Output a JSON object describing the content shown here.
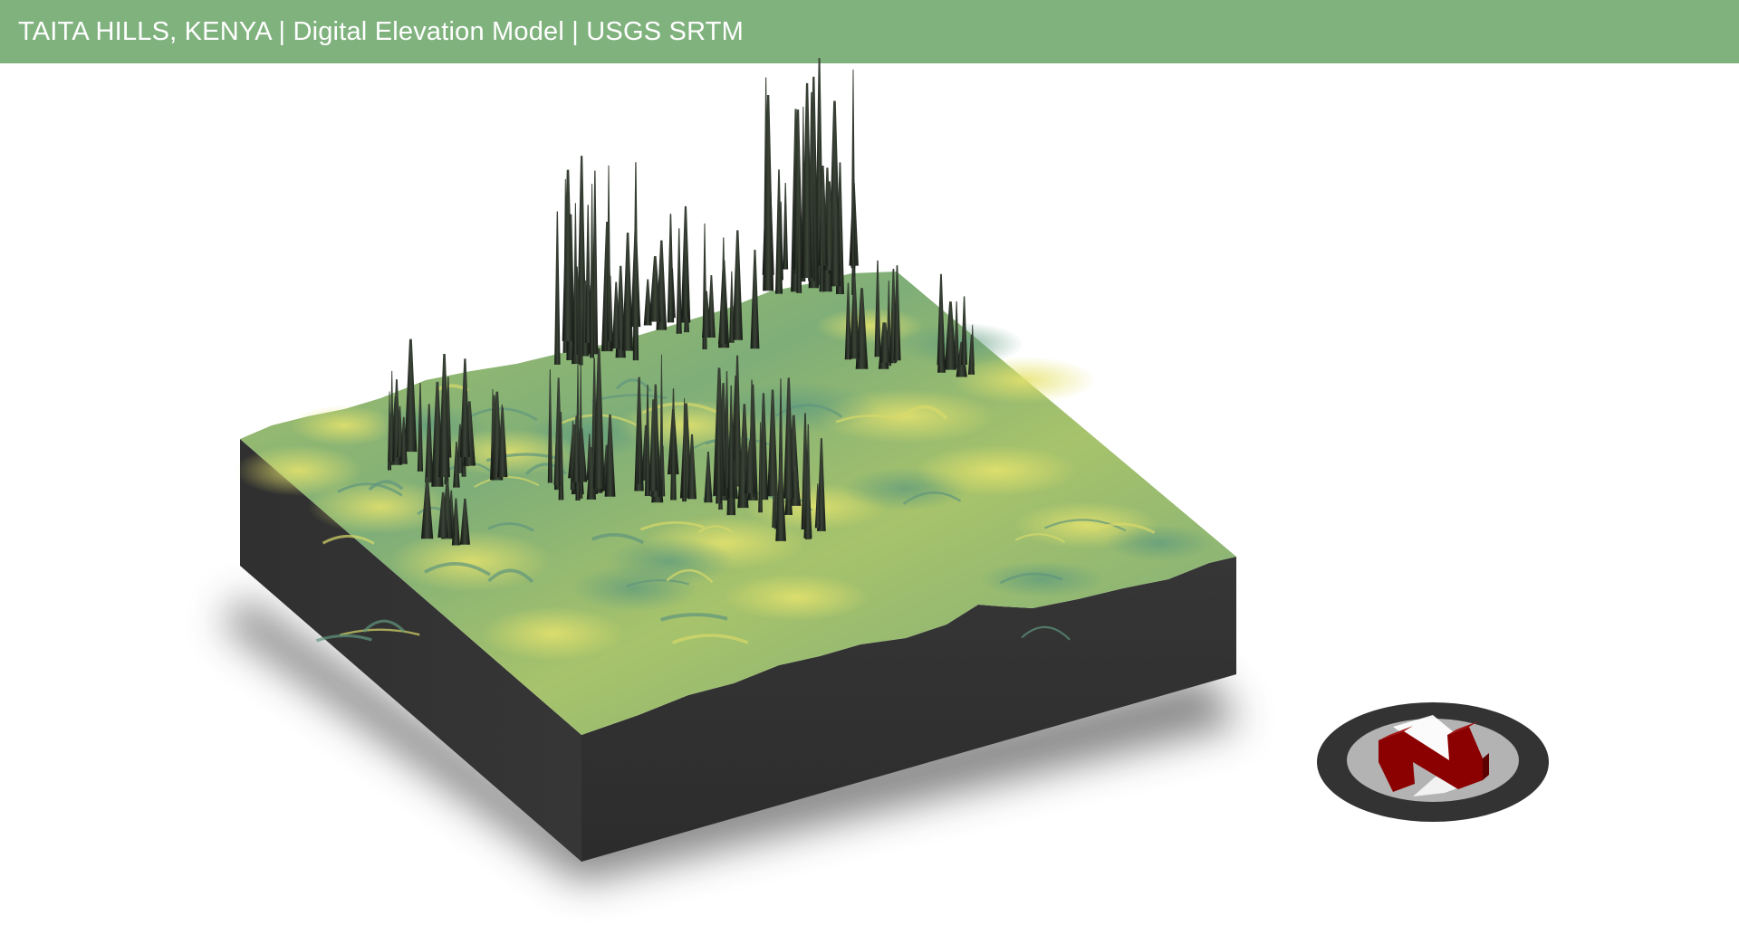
{
  "header": {
    "title": "TAITA HILLS, KENYA | Digital Elevation Model | USGS SRTM"
  },
  "colors": {
    "header_bg": "#80b27e",
    "header_text": "#ffffff",
    "terrain_low": "#6fa57f",
    "terrain_mid": "#9cbc6a",
    "terrain_high": "#d9dd6c",
    "block_side": "#323232",
    "shadow": "#7a7a7a",
    "peak_spikes": "#1e2320",
    "compass_ring": "#333333",
    "compass_inner": "#b3b3b3",
    "compass_arrow": "#8b0000",
    "compass_pointer": "#ffffff"
  },
  "compass": {
    "letter_icon": "north-arrow-icon"
  }
}
